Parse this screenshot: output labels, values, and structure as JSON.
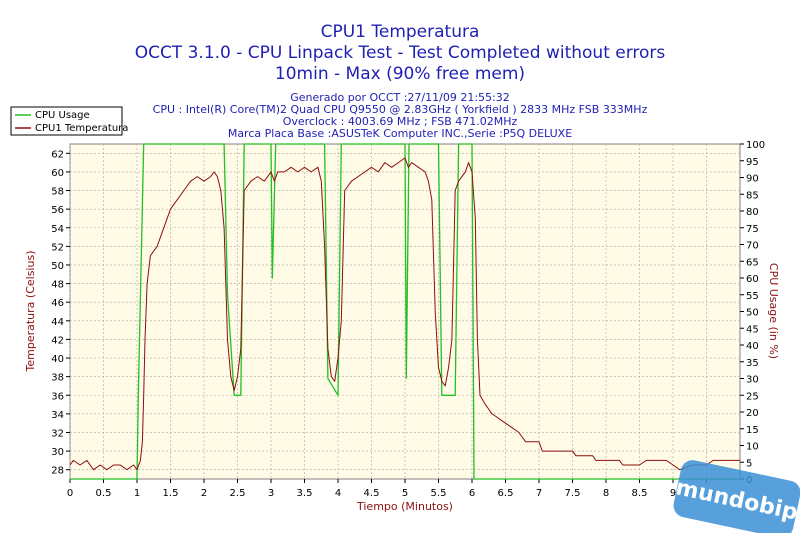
{
  "chart_data": {
    "type": "line",
    "title": "CPU1 Temperatura",
    "subtitle_lines": [
      "OCCT 3.1.0 - CPU Linpack Test - Test Completed without errors",
      "10min - Max (90% free mem)"
    ],
    "info_lines": [
      "Generado por OCCT :27/11/09 21:55:32",
      "CPU : Intel(R) Core(TM)2 Quad CPU Q9550 @ 2.83GHz ( Yorkfield ) 2833 MHz FSB 333MHz",
      "Overclock : 4003.69 MHz ; FSB 471.02MHz",
      "Marca Placa Base :ASUSTeK Computer INC.,Serie :P5Q DELUXE"
    ],
    "xlabel": "Tiempo (Minutos)",
    "ylabel": "Temperatura (Celsius)",
    "y2label": "CPU Usage (in %)",
    "xlim": [
      0,
      10
    ],
    "ylim": [
      27,
      63
    ],
    "y2lim": [
      0,
      100
    ],
    "xticks": [
      "0",
      "0.5",
      "1",
      "1.5",
      "2",
      "2.5",
      "3",
      "3.5",
      "4",
      "4.5",
      "5",
      "5.5",
      "6",
      "6.5",
      "7",
      "7.5",
      "8",
      "8.5",
      "9",
      "9.5"
    ],
    "yticks": [
      "28",
      "30",
      "32",
      "34",
      "36",
      "38",
      "40",
      "42",
      "44",
      "46",
      "48",
      "50",
      "52",
      "54",
      "56",
      "58",
      "60",
      "62"
    ],
    "y2ticks": [
      "0",
      "5",
      "10",
      "15",
      "20",
      "25",
      "30",
      "35",
      "40",
      "45",
      "50",
      "55",
      "60",
      "65",
      "70",
      "75",
      "80",
      "85",
      "90",
      "95",
      "100"
    ],
    "grid": true,
    "legend_position": "top-left",
    "series": [
      {
        "name": "CPU Usage",
        "color": "#22c022",
        "axis": "right",
        "points": [
          [
            0,
            0
          ],
          [
            1.0,
            0
          ],
          [
            1.02,
            25
          ],
          [
            1.1,
            100
          ],
          [
            2.3,
            100
          ],
          [
            2.35,
            55
          ],
          [
            2.45,
            25
          ],
          [
            2.55,
            25
          ],
          [
            2.6,
            100
          ],
          [
            3.0,
            100
          ],
          [
            3.02,
            60
          ],
          [
            3.07,
            100
          ],
          [
            3.8,
            100
          ],
          [
            3.85,
            30
          ],
          [
            4.0,
            25
          ],
          [
            4.05,
            100
          ],
          [
            5.0,
            100
          ],
          [
            5.02,
            30
          ],
          [
            5.06,
            100
          ],
          [
            5.5,
            100
          ],
          [
            5.55,
            25
          ],
          [
            5.75,
            25
          ],
          [
            5.8,
            100
          ],
          [
            6.0,
            100
          ],
          [
            6.03,
            0
          ],
          [
            10,
            0
          ]
        ]
      },
      {
        "name": "CPU1 Temperatura",
        "color": "#8b0f0f",
        "axis": "left",
        "points": [
          [
            0,
            28.5
          ],
          [
            0.05,
            29
          ],
          [
            0.15,
            28.5
          ],
          [
            0.25,
            29
          ],
          [
            0.35,
            28
          ],
          [
            0.45,
            28.5
          ],
          [
            0.55,
            28
          ],
          [
            0.65,
            28.5
          ],
          [
            0.75,
            28.5
          ],
          [
            0.85,
            28
          ],
          [
            0.95,
            28.5
          ],
          [
            1.0,
            28
          ],
          [
            1.05,
            29
          ],
          [
            1.08,
            31
          ],
          [
            1.1,
            36
          ],
          [
            1.12,
            42
          ],
          [
            1.15,
            48
          ],
          [
            1.2,
            51
          ],
          [
            1.3,
            52
          ],
          [
            1.4,
            54
          ],
          [
            1.5,
            56
          ],
          [
            1.6,
            57
          ],
          [
            1.7,
            58
          ],
          [
            1.8,
            59
          ],
          [
            1.9,
            59.5
          ],
          [
            2.0,
            59
          ],
          [
            2.1,
            59.5
          ],
          [
            2.15,
            60
          ],
          [
            2.2,
            59.5
          ],
          [
            2.25,
            58
          ],
          [
            2.3,
            54
          ],
          [
            2.35,
            42
          ],
          [
            2.4,
            38
          ],
          [
            2.45,
            36.5
          ],
          [
            2.5,
            38
          ],
          [
            2.55,
            41
          ],
          [
            2.6,
            58
          ],
          [
            2.7,
            59
          ],
          [
            2.8,
            59.5
          ],
          [
            2.9,
            59
          ],
          [
            3.0,
            60
          ],
          [
            3.05,
            59
          ],
          [
            3.1,
            60
          ],
          [
            3.2,
            60
          ],
          [
            3.3,
            60.5
          ],
          [
            3.4,
            60
          ],
          [
            3.5,
            60.5
          ],
          [
            3.6,
            60
          ],
          [
            3.7,
            60.5
          ],
          [
            3.75,
            59
          ],
          [
            3.8,
            52
          ],
          [
            3.85,
            41
          ],
          [
            3.9,
            38
          ],
          [
            3.95,
            37.5
          ],
          [
            4.0,
            40
          ],
          [
            4.05,
            44
          ],
          [
            4.1,
            58
          ],
          [
            4.2,
            59
          ],
          [
            4.3,
            59.5
          ],
          [
            4.4,
            60
          ],
          [
            4.5,
            60.5
          ],
          [
            4.6,
            60
          ],
          [
            4.7,
            61
          ],
          [
            4.8,
            60.5
          ],
          [
            4.9,
            61
          ],
          [
            5.0,
            61.5
          ],
          [
            5.05,
            60.5
          ],
          [
            5.1,
            61
          ],
          [
            5.2,
            60.5
          ],
          [
            5.3,
            60
          ],
          [
            5.35,
            59
          ],
          [
            5.4,
            57
          ],
          [
            5.45,
            45
          ],
          [
            5.5,
            39
          ],
          [
            5.55,
            37.5
          ],
          [
            5.6,
            37
          ],
          [
            5.65,
            39
          ],
          [
            5.7,
            42
          ],
          [
            5.75,
            58
          ],
          [
            5.8,
            59
          ],
          [
            5.9,
            60
          ],
          [
            5.95,
            61
          ],
          [
            6.0,
            60
          ],
          [
            6.05,
            55
          ],
          [
            6.08,
            42
          ],
          [
            6.12,
            36
          ],
          [
            6.2,
            35
          ],
          [
            6.3,
            34
          ],
          [
            6.4,
            33.5
          ],
          [
            6.5,
            33
          ],
          [
            6.6,
            32.5
          ],
          [
            6.7,
            32
          ],
          [
            6.8,
            31
          ],
          [
            7.0,
            31
          ],
          [
            7.05,
            30
          ],
          [
            7.5,
            30
          ],
          [
            7.55,
            29.5
          ],
          [
            7.8,
            29.5
          ],
          [
            7.85,
            29
          ],
          [
            8.2,
            29
          ],
          [
            8.25,
            28.5
          ],
          [
            8.5,
            28.5
          ],
          [
            8.6,
            29
          ],
          [
            8.9,
            29
          ],
          [
            9.0,
            28.5
          ],
          [
            9.1,
            28
          ],
          [
            9.3,
            28.5
          ],
          [
            9.5,
            28.5
          ],
          [
            9.6,
            29
          ],
          [
            10,
            29
          ]
        ]
      }
    ]
  },
  "watermark": "mundobip"
}
